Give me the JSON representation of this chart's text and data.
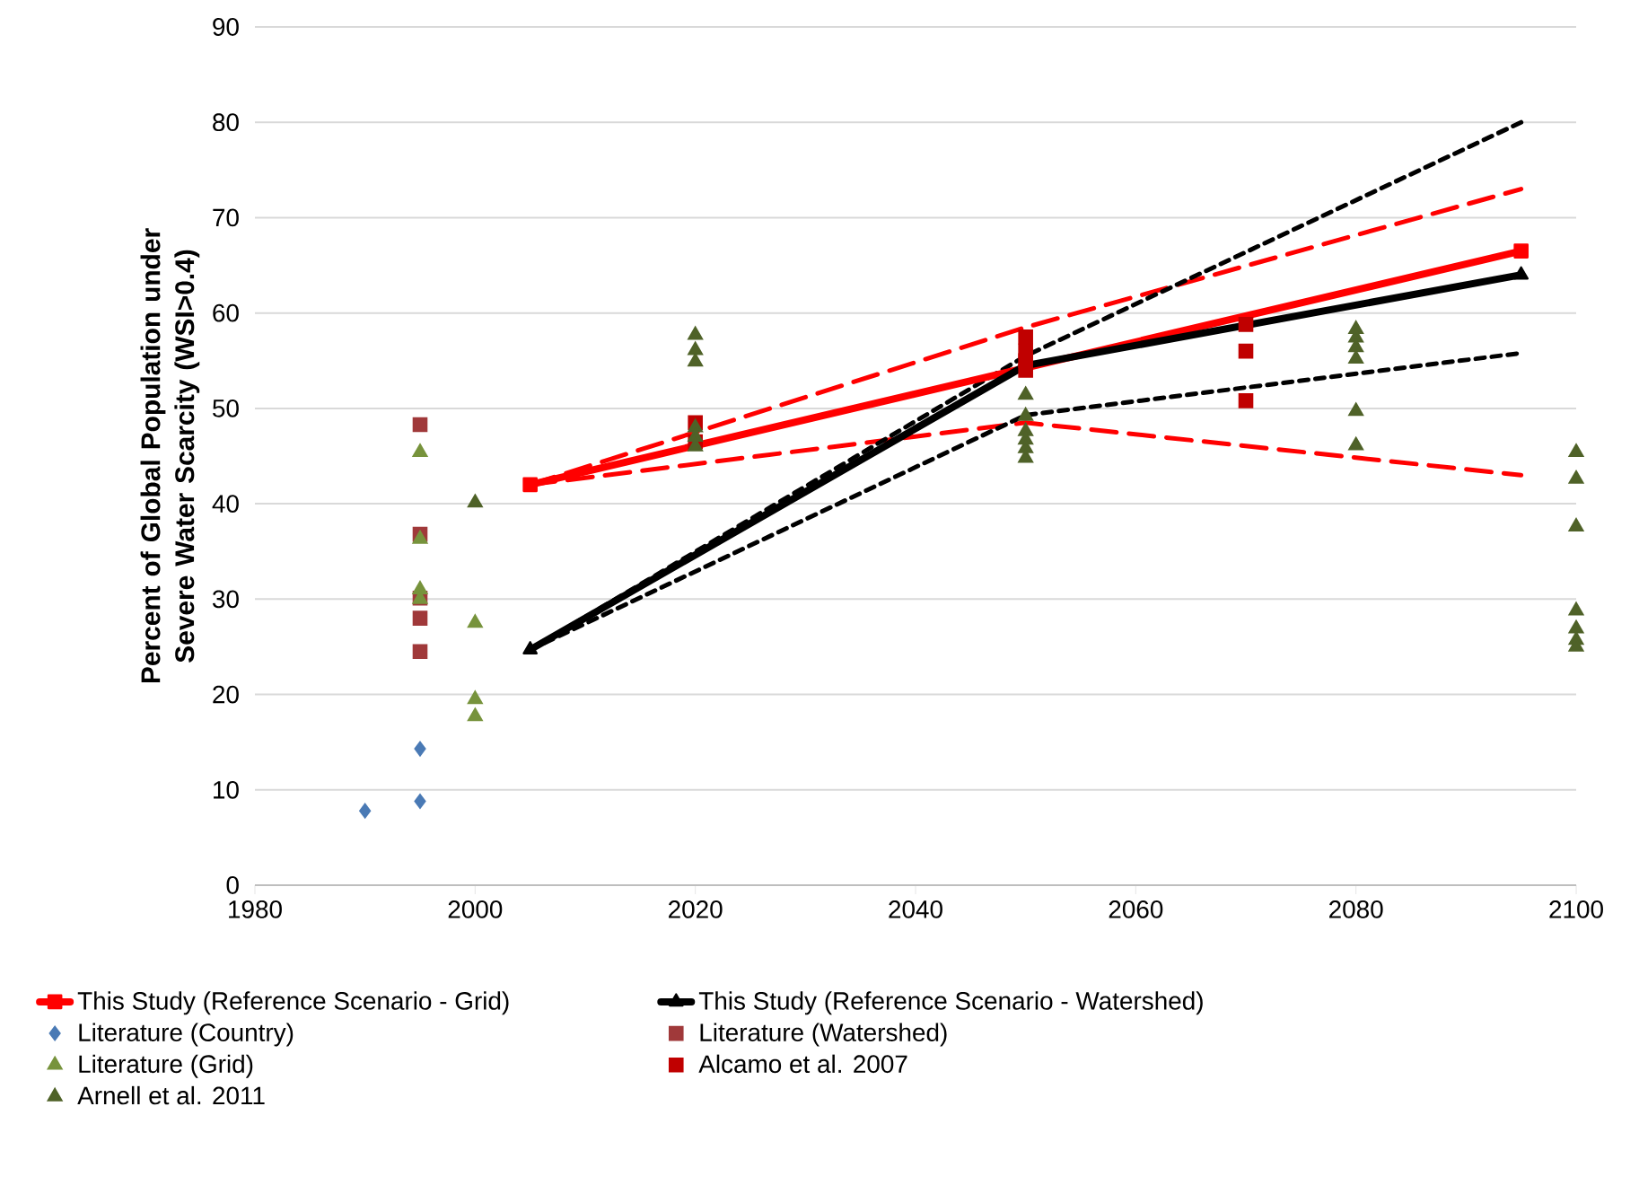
{
  "chart_data": {
    "type": "scatter",
    "ylabel": "Percent of Global Population under Severe Water Scarcity (WSI>0.4)",
    "xlim": [
      1980,
      2100
    ],
    "xticks": [
      1980,
      2000,
      2020,
      2040,
      2060,
      2080,
      2100
    ],
    "ylim": [
      0,
      90
    ],
    "yticks": [
      0,
      10,
      20,
      30,
      40,
      50,
      60,
      70,
      80,
      90
    ],
    "grid": "y",
    "legend": "bottom",
    "series": [
      {
        "type": "line",
        "color": "#ff0000",
        "line_style": "dashed",
        "marker": "none",
        "x": [
          2005,
          2050,
          2095
        ],
        "values": [
          42,
          58.5,
          73
        ]
      },
      {
        "type": "line",
        "color": "#ff0000",
        "line_style": "dashed",
        "marker": "none",
        "x": [
          2005,
          2050,
          2095
        ],
        "values": [
          42,
          48.5,
          43
        ]
      },
      {
        "type": "line",
        "color": "#000000",
        "line_style": "dotted",
        "marker": "none",
        "x": [
          2005,
          2050,
          2095
        ],
        "values": [
          24.7,
          55.5,
          80
        ]
      },
      {
        "type": "line",
        "color": "#000000",
        "line_style": "dotted",
        "marker": "none",
        "x": [
          2005,
          2050,
          2095
        ],
        "values": [
          24.7,
          49.3,
          55.8
        ]
      },
      {
        "name": "This Study (Reference Scenario - Grid)",
        "type": "line",
        "color": "#ff0000",
        "line_style": "solid",
        "marker": "square",
        "x": [
          2005,
          2095
        ],
        "values": [
          42,
          66.5
        ]
      },
      {
        "name": "This Study (Reference Scenario - Watershed)",
        "type": "line",
        "color": "#000000",
        "line_style": "solid",
        "marker": "triangle",
        "x": [
          2005,
          2050,
          2095
        ],
        "values": [
          24.7,
          54.5,
          64
        ]
      },
      {
        "name": "Literature (Country)",
        "color": "#4a7ab5",
        "marker": "diamond",
        "x": [
          1990,
          1995,
          1995
        ],
        "values": [
          7.8,
          8.8,
          14.3
        ]
      },
      {
        "name": "Literature (Watershed)",
        "color": "#a0393a",
        "marker": "square",
        "x": [
          1995,
          1995,
          1995,
          1995,
          1995
        ],
        "values": [
          48.3,
          36.8,
          30.1,
          28.0,
          24.5
        ]
      },
      {
        "name": "Literature (Grid)",
        "color": "#77933c",
        "marker": "triangle",
        "x": [
          1995,
          1995,
          1995,
          1995,
          2000,
          2000,
          2000
        ],
        "values": [
          45.4,
          36.3,
          31.0,
          30.0,
          27.5,
          19.5,
          17.7
        ]
      },
      {
        "name": "Alcamo et al. 2007",
        "color": "#c00000",
        "marker": "square",
        "x": [
          2020,
          2020,
          2050,
          2050,
          2050,
          2050,
          2070,
          2070,
          2070
        ],
        "values": [
          48.5,
          46.5,
          57.5,
          56,
          55,
          54,
          58.8,
          56,
          50.8
        ]
      },
      {
        "name": "Arnell et al. 2011",
        "color": "#4f6228",
        "marker": "triangle",
        "x": [
          2000,
          2020,
          2020,
          2020,
          2020,
          2020,
          2020,
          2050,
          2050,
          2050,
          2050,
          2050,
          2050,
          2080,
          2080,
          2080,
          2080,
          2080,
          2080,
          2100,
          2100,
          2100,
          2100,
          2100,
          2100,
          2100
        ],
        "values": [
          40.1,
          57.7,
          56.1,
          54.9,
          48,
          47,
          46,
          51.4,
          49.2,
          47.6,
          46.7,
          45.8,
          44.8,
          58.3,
          57.4,
          56.4,
          55.2,
          49.7,
          46.1,
          45.4,
          42.6,
          37.6,
          28.8,
          26.9,
          25.7,
          25.0
        ]
      }
    ]
  }
}
